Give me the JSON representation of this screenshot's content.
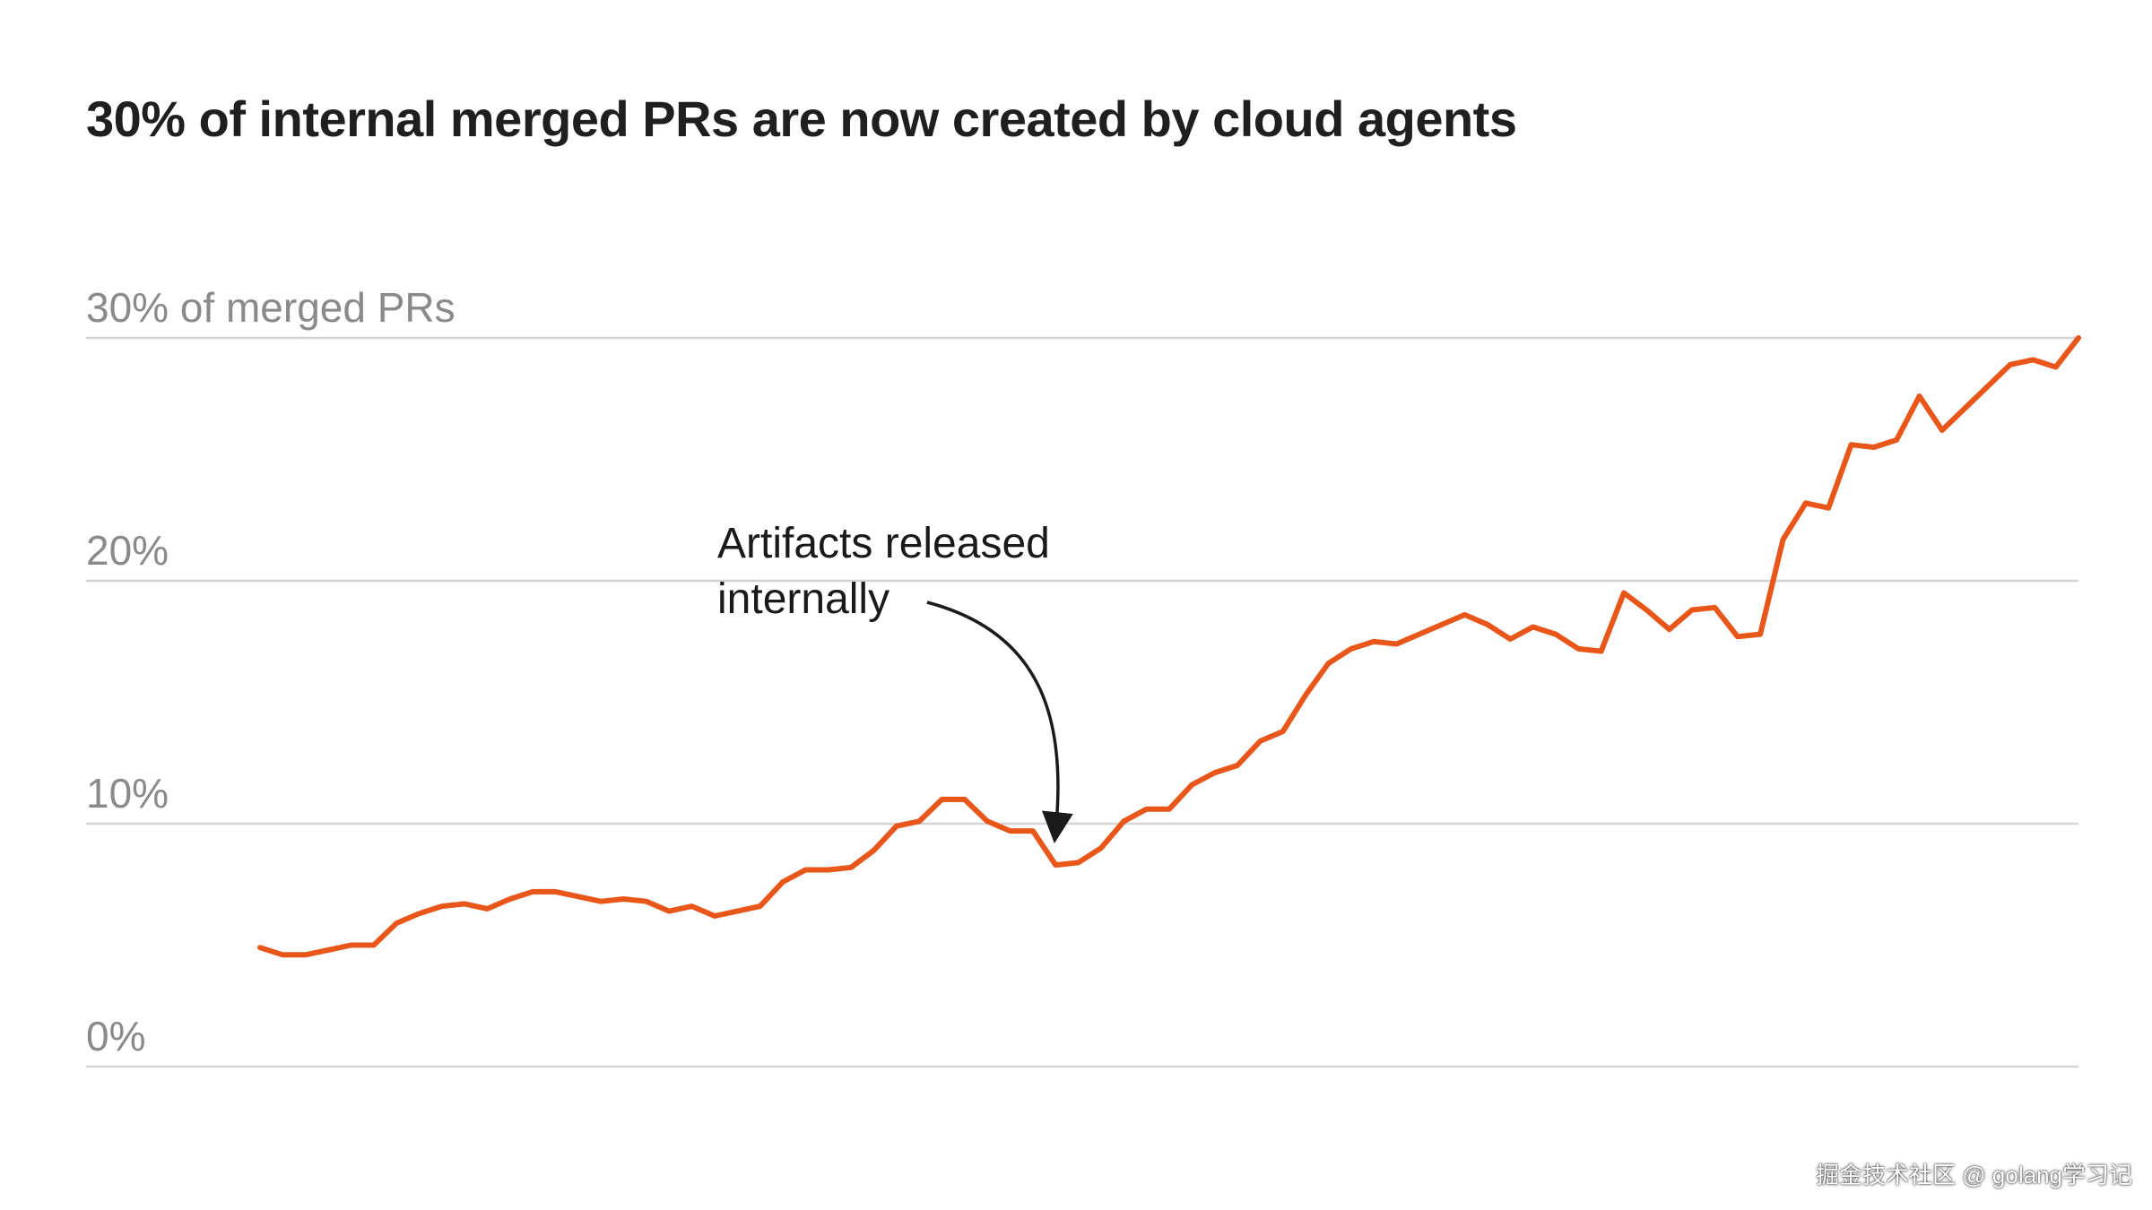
{
  "chart_data": {
    "type": "line",
    "title": "30% of internal merged PRs are now created by cloud agents",
    "xlabel": "",
    "ylabel": "",
    "ylim": [
      0,
      30
    ],
    "yticks": [
      {
        "value": 0,
        "label": "0%"
      },
      {
        "value": 10,
        "label": "10%"
      },
      {
        "value": 20,
        "label": "20%"
      },
      {
        "value": 30,
        "label": "30% of merged PRs"
      }
    ],
    "grid": true,
    "series": [
      {
        "name": "Share of internal merged PRs created by cloud agents",
        "color": "#e8561a",
        "values": [
          4.9,
          4.6,
          4.6,
          4.8,
          5.0,
          5.0,
          5.9,
          6.3,
          6.6,
          6.7,
          6.5,
          6.9,
          7.2,
          7.2,
          7.0,
          6.8,
          6.9,
          6.8,
          6.4,
          6.6,
          6.2,
          6.4,
          6.6,
          7.6,
          8.1,
          8.1,
          8.2,
          8.9,
          9.9,
          10.1,
          11.0,
          11.0,
          10.1,
          9.7,
          9.7,
          8.3,
          8.4,
          9.0,
          10.1,
          10.6,
          10.6,
          11.6,
          12.1,
          12.4,
          13.4,
          13.8,
          15.3,
          16.6,
          17.2,
          17.5,
          17.4,
          17.8,
          18.2,
          18.6,
          18.2,
          17.6,
          18.1,
          17.8,
          17.2,
          17.1,
          19.5,
          18.8,
          18.0,
          18.8,
          18.9,
          17.7,
          17.8,
          21.7,
          23.2,
          23.0,
          25.6,
          25.5,
          25.8,
          27.6,
          26.2,
          27.1,
          28.0,
          28.9,
          29.1,
          28.8,
          30.0
        ]
      }
    ],
    "annotations": [
      {
        "text_lines": [
          "Artifacts released",
          "internally"
        ],
        "target_index": 35
      }
    ]
  },
  "watermark": "掘金技术社区 @ golang学习记",
  "colors": {
    "line": "#e8561a",
    "grid": "#d4d4d4",
    "tick_text": "#8a8a8a",
    "title_text": "#1f1f1f",
    "annotation": "#1a1a1a"
  }
}
